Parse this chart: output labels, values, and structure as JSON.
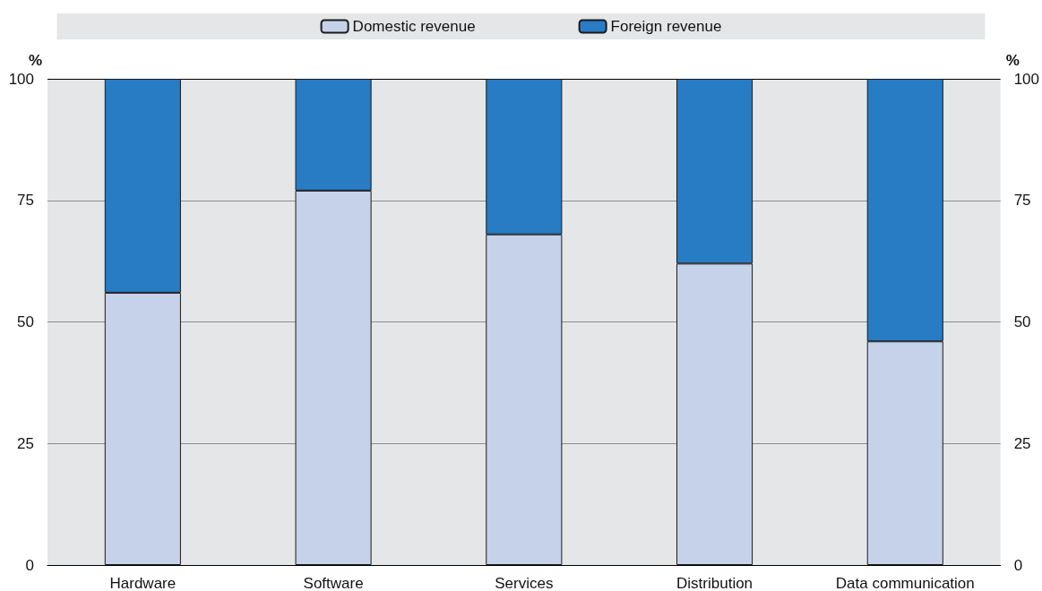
{
  "chart_data": {
    "type": "bar",
    "stacked": true,
    "categories": [
      "Hardware",
      "Software",
      "Services",
      "Distribution",
      "Data communication"
    ],
    "series": [
      {
        "name": "Domestic revenue",
        "color": "#c6d2ea",
        "values": [
          56,
          77,
          68,
          62,
          46
        ]
      },
      {
        "name": "Foreign revenue",
        "color": "#277cc4",
        "values": [
          44,
          23,
          32,
          38,
          54
        ]
      }
    ],
    "ylabel": "%",
    "y2label": "%",
    "ylim": [
      0,
      100
    ],
    "yticks": [
      0,
      25,
      50,
      75,
      100
    ],
    "y2lim": [
      0,
      100
    ],
    "y2ticks": [
      0,
      25,
      50,
      75,
      100
    ],
    "grid": "y",
    "legend": "top"
  }
}
